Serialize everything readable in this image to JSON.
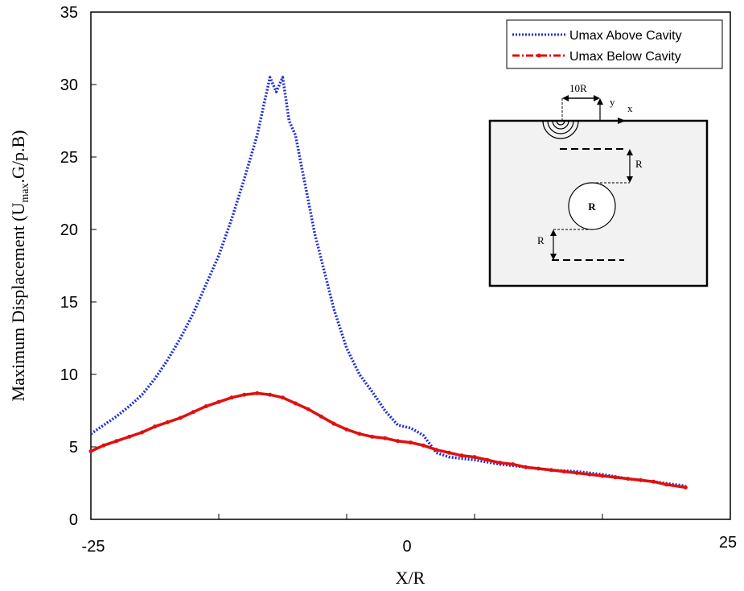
{
  "chart_data": {
    "type": "line",
    "xlabel": "X/R",
    "ylabel": "Maximum Displacement (U",
    "ylabel_sub": "max",
    "ylabel_tail": ".G/p.B)",
    "xlim": [
      -25,
      25
    ],
    "ylim": [
      0,
      35
    ],
    "x_tick_labels": [
      "-25",
      "0",
      "25"
    ],
    "y_ticks": [
      0,
      5,
      10,
      15,
      20,
      25,
      30,
      35
    ],
    "grid": false,
    "legend_position": "top-right",
    "series": [
      {
        "name": "Umax Above Cavity",
        "color": "#1f2fd0",
        "style": "dotted",
        "x": [
          -25,
          -24,
          -23,
          -22,
          -21,
          -20,
          -19,
          -18,
          -17,
          -16,
          -15,
          -14,
          -13,
          -12,
          -11.5,
          -11,
          -10.5,
          -10,
          -9.5,
          -9,
          -8.5,
          -8,
          -7.5,
          -7,
          -6,
          -5,
          -4,
          -3,
          -2,
          -1,
          0,
          1,
          2,
          3,
          5,
          7,
          9,
          11,
          13,
          15,
          17,
          19,
          21.5
        ],
        "y": [
          5.9,
          6.5,
          7.1,
          7.8,
          8.6,
          9.7,
          11.0,
          12.5,
          14.2,
          16.2,
          18.2,
          20.7,
          23.5,
          26.5,
          28.5,
          30.5,
          29.5,
          30.5,
          27.5,
          26.5,
          24.2,
          22.0,
          19.7,
          18.0,
          14.5,
          11.8,
          10.0,
          8.8,
          7.5,
          6.5,
          6.3,
          5.8,
          4.6,
          4.3,
          4.1,
          3.8,
          3.6,
          3.4,
          3.3,
          3.1,
          2.8,
          2.6,
          2.3
        ]
      },
      {
        "name": "Umax Below Cavity",
        "color": "#e01010",
        "style": "dash-dot",
        "x": [
          -25,
          -24,
          -23,
          -22,
          -21,
          -20,
          -19,
          -18,
          -17,
          -16,
          -15,
          -14,
          -13,
          -12,
          -11,
          -10,
          -9,
          -8,
          -7,
          -6,
          -5,
          -4,
          -3,
          -2,
          -1,
          0,
          1,
          2,
          3,
          4,
          5,
          6,
          7,
          8,
          9,
          10,
          11,
          12,
          13,
          14,
          15,
          16,
          17,
          18,
          19,
          20,
          21.5
        ],
        "y": [
          4.7,
          5.1,
          5.4,
          5.7,
          6.0,
          6.4,
          6.7,
          7.0,
          7.4,
          7.8,
          8.1,
          8.4,
          8.6,
          8.7,
          8.6,
          8.4,
          8.0,
          7.6,
          7.1,
          6.6,
          6.2,
          5.9,
          5.7,
          5.6,
          5.4,
          5.3,
          5.1,
          4.8,
          4.6,
          4.4,
          4.3,
          4.1,
          3.9,
          3.8,
          3.6,
          3.5,
          3.4,
          3.3,
          3.2,
          3.1,
          3.0,
          2.9,
          2.8,
          2.7,
          2.6,
          2.4,
          2.2
        ]
      }
    ],
    "inset": {
      "label_10R": "10R",
      "label_y": "y",
      "label_x": "x",
      "label_r_upper": "R",
      "label_r_center": "R",
      "label_r_lower": "R"
    }
  }
}
